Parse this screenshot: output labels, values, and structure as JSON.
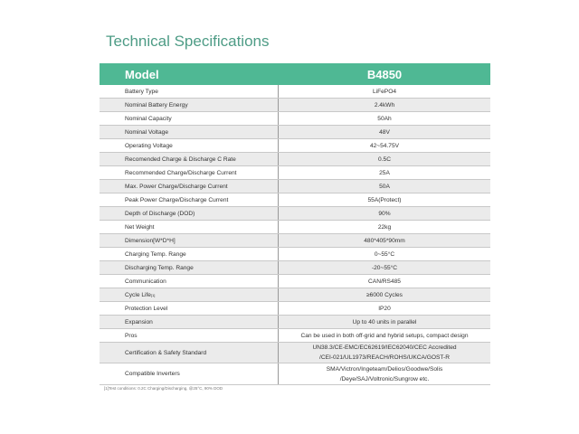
{
  "title": "Technical Specifications",
  "header": {
    "label": "Model",
    "value": "B4850"
  },
  "rows": [
    {
      "label": "Battery Type",
      "value": "LiFePO4"
    },
    {
      "label": "Nominal Battery Energy",
      "value": "2.4kWh"
    },
    {
      "label": "Nominal Capacity",
      "value": "50Ah"
    },
    {
      "label": "Nominal Voltage",
      "value": "48V"
    },
    {
      "label": "Operating Voltage",
      "value": "42~54.75V"
    },
    {
      "label": "Recomended Charge & Discharge C Rate",
      "value": "0.5C"
    },
    {
      "label": "Recommended Charge/Discharge Current",
      "value": "25A"
    },
    {
      "label": "Max. Power Charge/Discharge Current",
      "value": "50A"
    },
    {
      "label": "Peak Power Charge/Discharge Current",
      "value": "55A(Protect)"
    },
    {
      "label": "Depth of Discharge (DOD)",
      "value": "90%"
    },
    {
      "label": "Net Weight",
      "value": "22kg"
    },
    {
      "label": "Dimension[W*D*H]",
      "value": "480*405*90mm"
    },
    {
      "label": "Charging Temp. Range",
      "value": "0~55°C"
    },
    {
      "label": "Discharging Temp. Range",
      "value": "-20~55°C"
    },
    {
      "label": "Communication",
      "value": "CAN/RS485"
    },
    {
      "label": "Cycle Life",
      "sup": "[1]",
      "value": "≥6000 Cycles"
    },
    {
      "label": "Protection Level",
      "value": "IP20"
    },
    {
      "label": "Expansion",
      "value": "Up to 40 units in parallel"
    },
    {
      "label": "Pros",
      "value": "Can be used in both off-grid and hybrid setups, compact design"
    },
    {
      "label": "Certification & Safety Standard",
      "value": "UN38.3/CE-EMC/EC62619/IEC62040/CEC Accredited",
      "value2": "/CEI-021/UL1973/REACH/ROHS/UKCA/GOST-R"
    },
    {
      "label": "Compatible Inverters",
      "value": "SMA/Victron/Ingeteam/Delios/Goodwe/Solis",
      "value2": "/Deye/SAJ/Voltronic/Sungrow etc."
    }
  ],
  "footnote": "[1]Test conditions: 0.2C Charging/Discharging, @25°C, 90% DOD",
  "colors": {
    "header_bg": "#4fb894",
    "title": "#4e9c86",
    "alt_row": "#ebebeb"
  }
}
